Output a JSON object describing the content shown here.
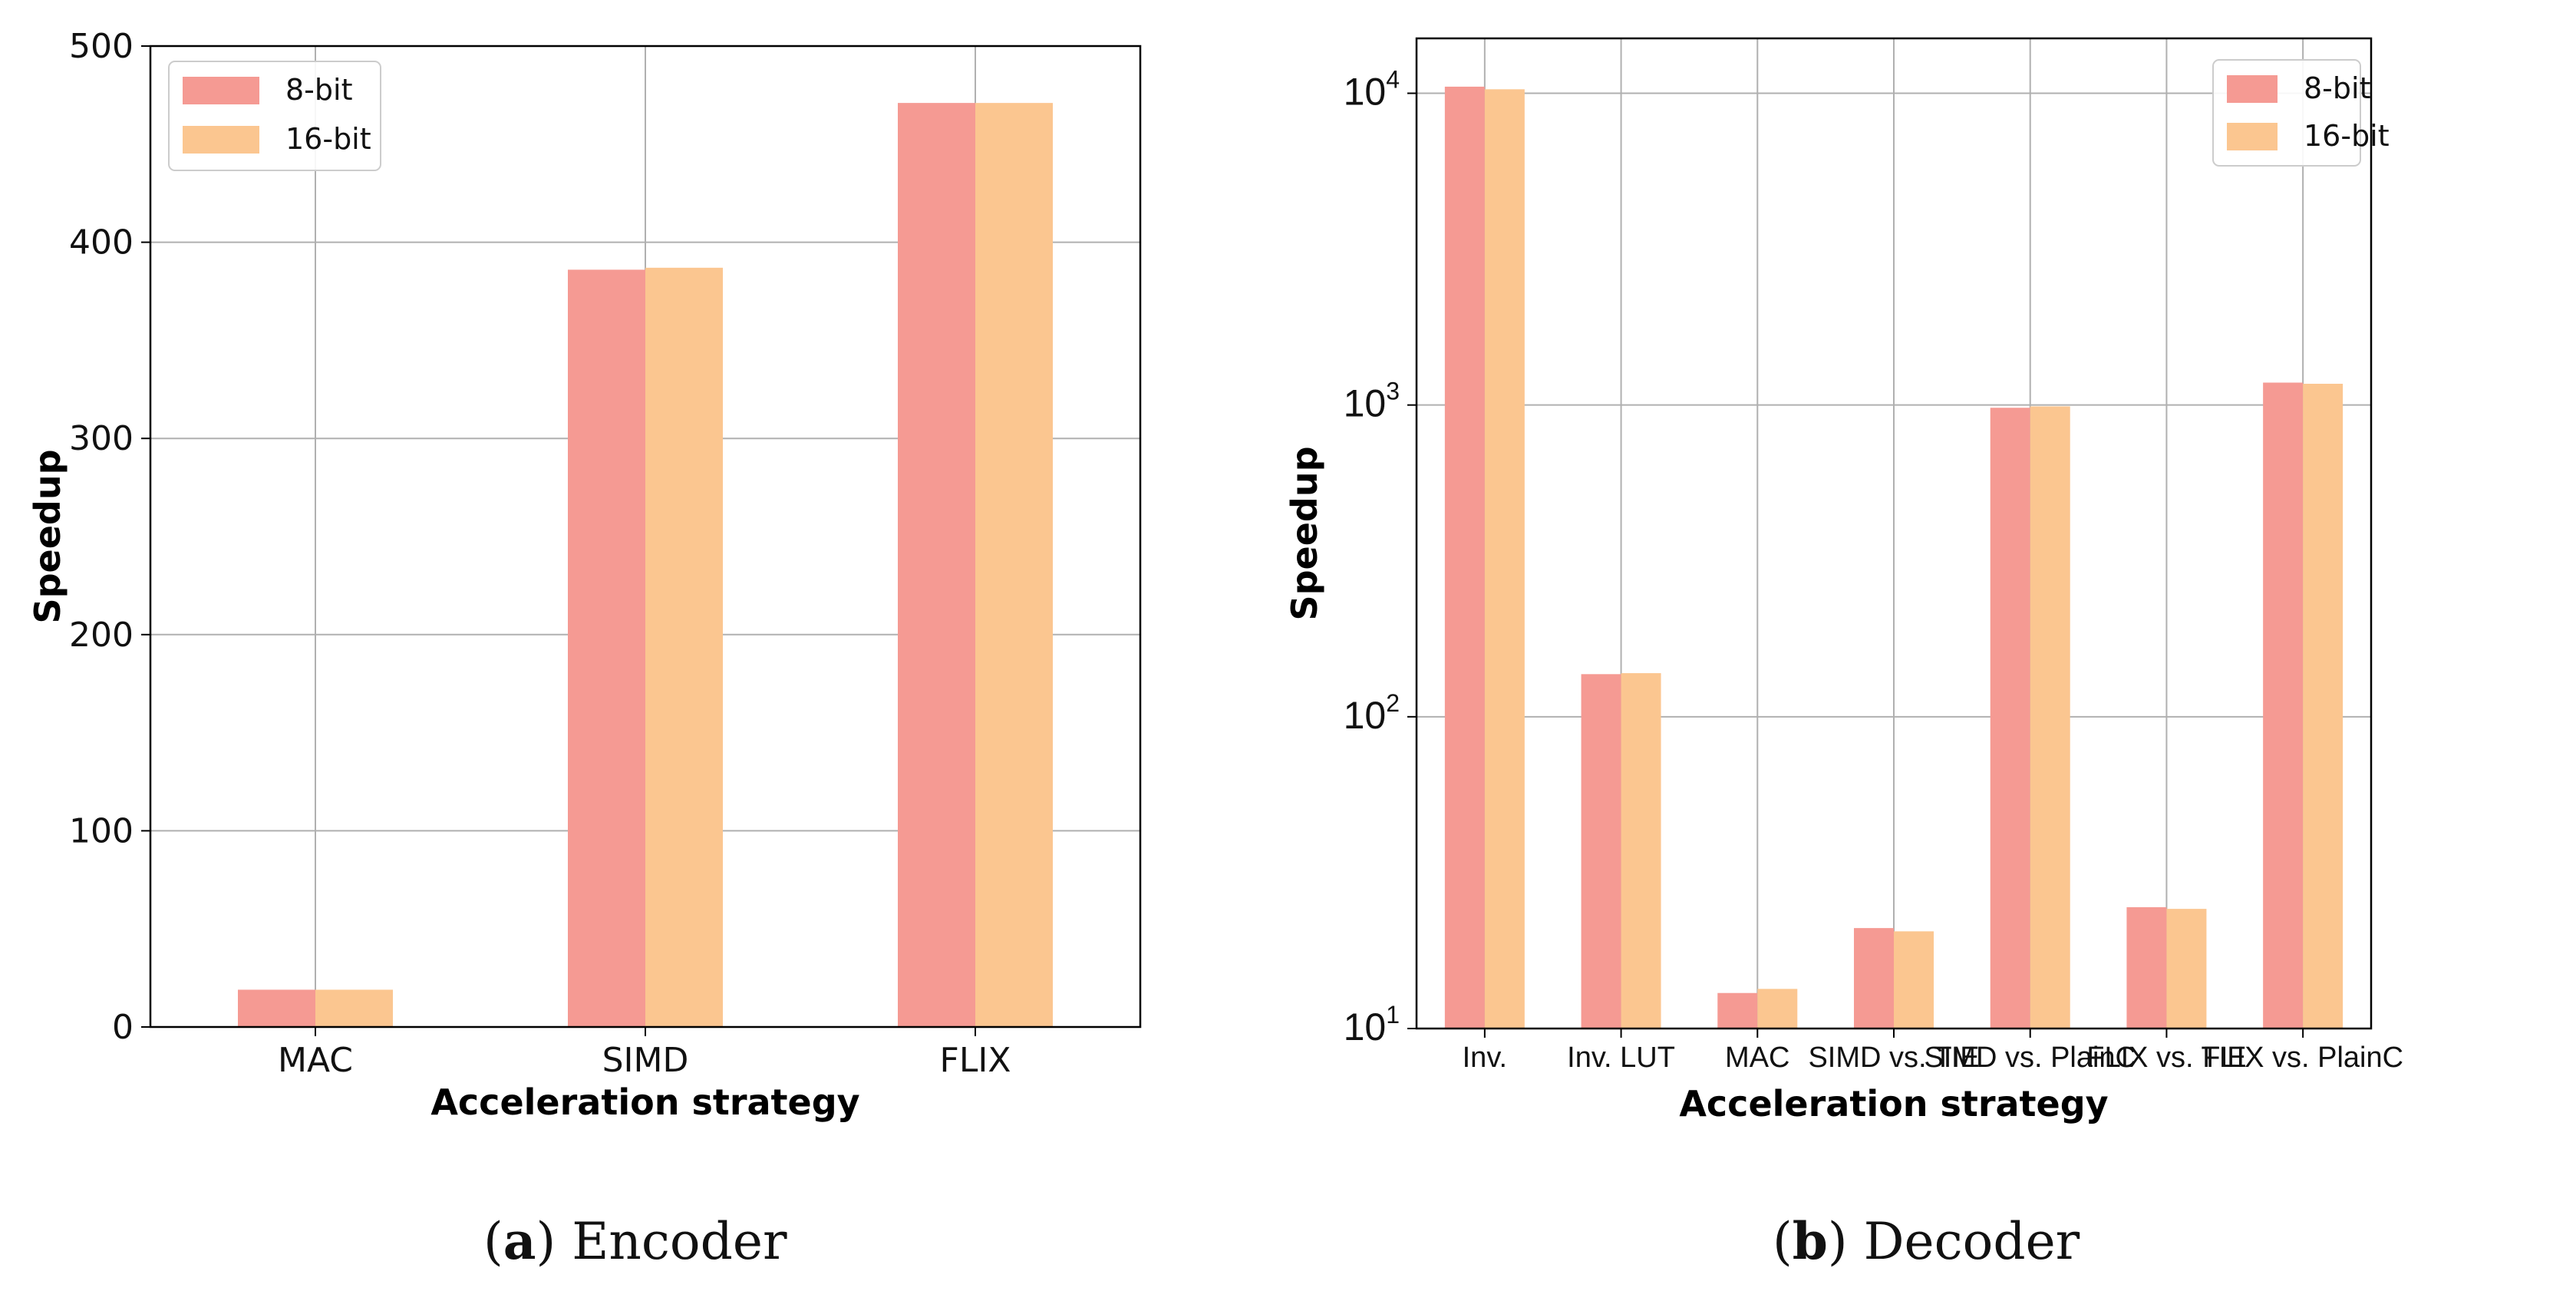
{
  "colors": {
    "series_8bit": "#f59a93",
    "series_16bit": "#fbc690",
    "grid": "#b0b0b0",
    "axis": "#000000"
  },
  "chart_data": [
    {
      "type": "bar",
      "title": "",
      "xlabel": "Acceleration strategy",
      "ylabel": "Speedup",
      "yscale": "linear",
      "ylim": [
        0,
        500
      ],
      "yticks": [
        0,
        100,
        200,
        300,
        400,
        500
      ],
      "ytick_labels": [
        "0",
        "100",
        "200",
        "300",
        "400",
        "500"
      ],
      "categories": [
        "MAC",
        "SIMD",
        "FLIX"
      ],
      "series": [
        {
          "name": "8-bit",
          "values": [
            19,
            386,
            471
          ]
        },
        {
          "name": "16-bit",
          "values": [
            19,
            387,
            471
          ]
        }
      ],
      "grid": true,
      "legend": "top-left",
      "caption_letter": "a",
      "caption_text": "Encoder"
    },
    {
      "type": "bar",
      "title": "",
      "xlabel": "Acceleration strategy",
      "ylabel": "Speedup",
      "yscale": "log",
      "ylim": [
        10,
        15000
      ],
      "yticks": [
        10,
        100,
        1000,
        10000
      ],
      "ytick_labels": [
        {
          "base": "10",
          "exp": "1"
        },
        {
          "base": "10",
          "exp": "2"
        },
        {
          "base": "10",
          "exp": "3"
        },
        {
          "base": "10",
          "exp": "4"
        }
      ],
      "categories": [
        "Inv.",
        "Inv. LUT",
        "MAC",
        "SIMD vs. TIE",
        "SIMD vs. PlainC",
        "FLIX vs. TIE",
        "FLIX vs. PlainC"
      ],
      "series": [
        {
          "name": "8-bit",
          "values": [
            10500,
            137,
            13,
            21,
            980,
            24.5,
            1180
          ]
        },
        {
          "name": "16-bit",
          "values": [
            10300,
            138,
            13.4,
            20.5,
            990,
            24.2,
            1170
          ]
        }
      ],
      "grid": true,
      "legend": "top-right",
      "caption_letter": "b",
      "caption_text": "Decoder"
    }
  ]
}
